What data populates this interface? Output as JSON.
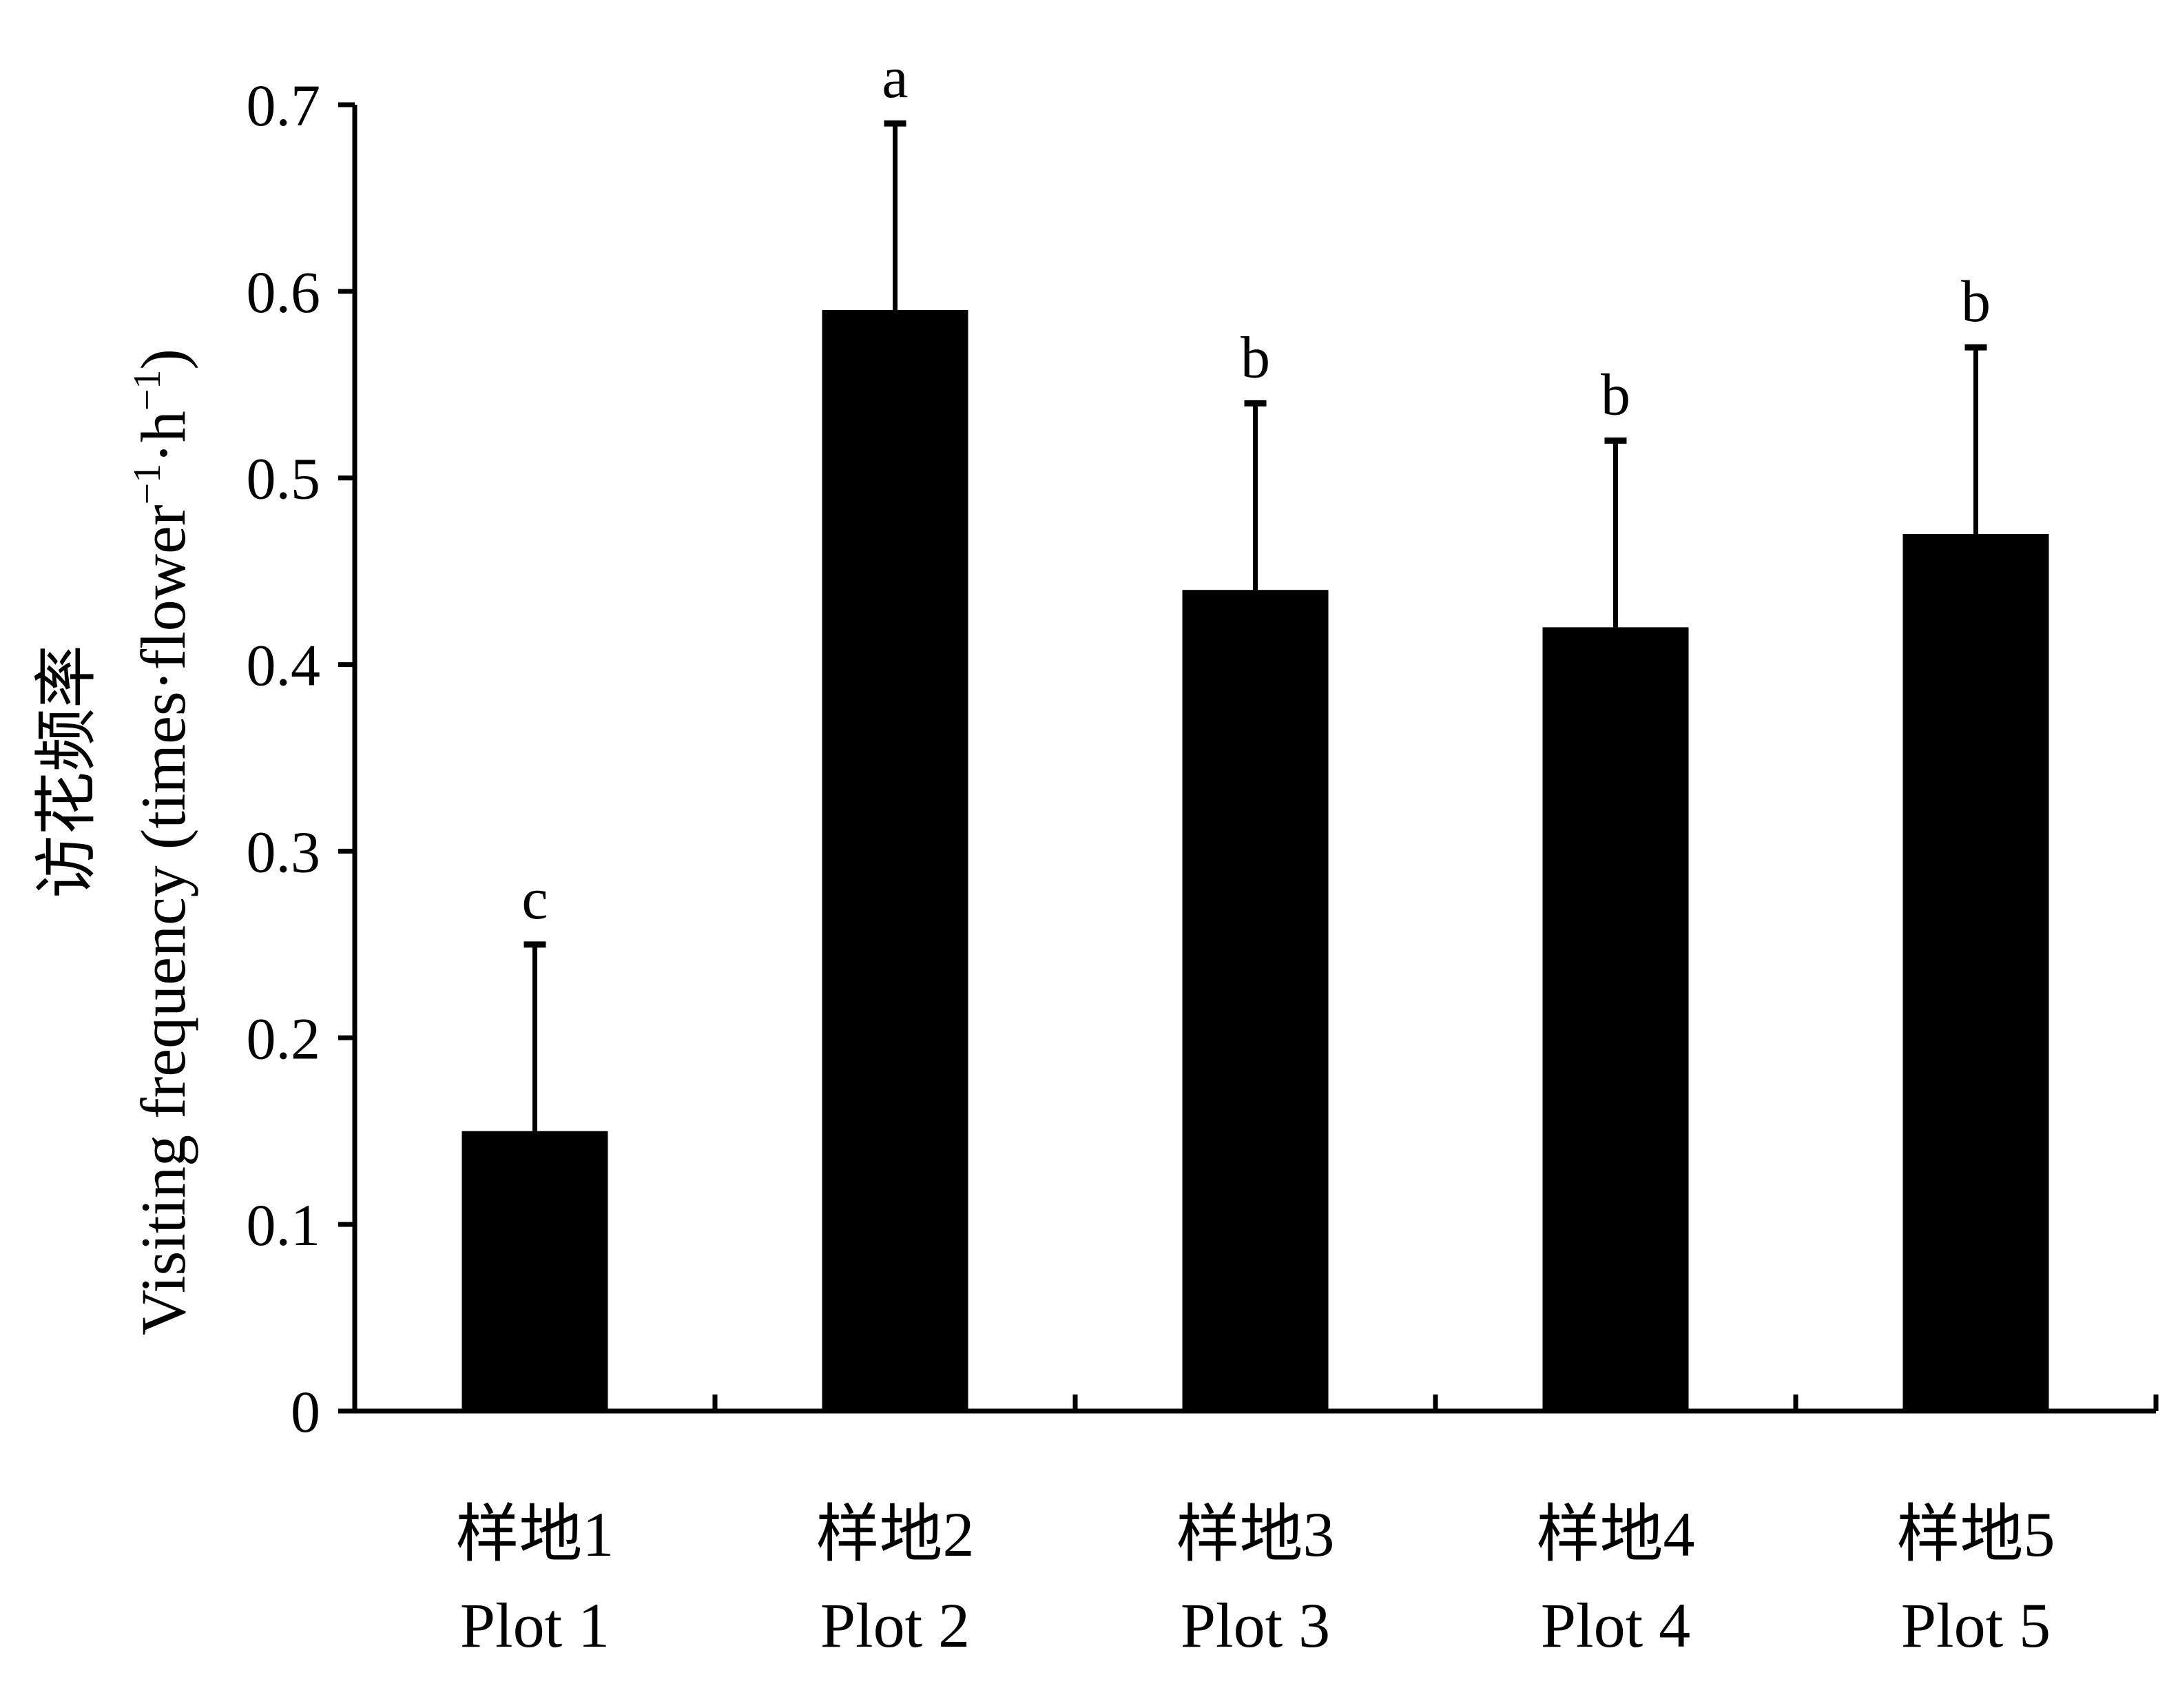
{
  "chart_data": {
    "type": "bar",
    "categories_cn": [
      "样地1",
      "样地2",
      "样地3",
      "样地4",
      "样地5"
    ],
    "categories": [
      "Plot 1",
      "Plot 2",
      "Plot 3",
      "Plot 4",
      "Plot 5"
    ],
    "values": [
      0.15,
      0.59,
      0.44,
      0.42,
      0.47
    ],
    "errors": [
      0.1,
      0.1,
      0.1,
      0.1,
      0.1
    ],
    "significance": [
      "c",
      "a",
      "b",
      "b",
      "b"
    ],
    "ylabel_cn": "访花频率",
    "ylabel_en": "Visiting frequency (times·flower",
    "ylabel_en_mid": "·h",
    "ylabel_en_end": ")",
    "ylabel_sup": "−1",
    "ylim": [
      0,
      0.7
    ],
    "yticks": [
      "0",
      "0.1",
      "0.2",
      "0.3",
      "0.4",
      "0.5",
      "0.6",
      "0.7"
    ],
    "bar_color": "#000000",
    "grid": false,
    "legend": "none"
  }
}
